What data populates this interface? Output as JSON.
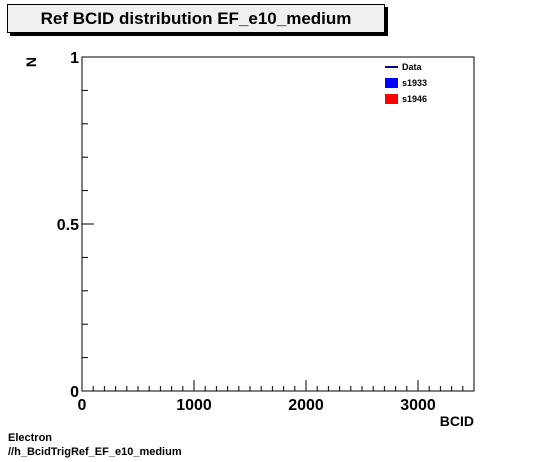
{
  "chart_data": {
    "type": "line",
    "title": "Ref BCID distribution EF_e10_medium",
    "xlabel": "BCID",
    "ylabel": "N",
    "xlim": [
      0,
      3500
    ],
    "ylim": [
      0,
      1
    ],
    "x_major_ticks": [
      0,
      1000,
      2000,
      3000
    ],
    "x_tick_labels": [
      "0",
      "1000",
      "2000",
      "3000"
    ],
    "y_major_ticks": [
      0,
      0.5,
      1
    ],
    "y_tick_labels": [
      "0",
      "0.5",
      "1"
    ],
    "grid": false,
    "legend_position": "top-right",
    "series": [
      {
        "name": "Data",
        "style": "line",
        "color": "#00007f",
        "values": []
      },
      {
        "name": "s1933",
        "style": "fill",
        "color": "#0000ff",
        "values": []
      },
      {
        "name": "s1946",
        "style": "fill",
        "color": "#ff0000",
        "values": []
      }
    ]
  },
  "footer": {
    "line1": "Electron",
    "line2": "//h_BcidTrigRef_EF_e10_medium"
  }
}
